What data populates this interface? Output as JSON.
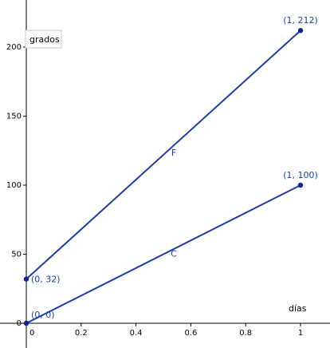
{
  "chart_data": {
    "type": "line",
    "xlabel": "días",
    "ylabel": "grados",
    "xlim": [
      -0.02,
      1.1
    ],
    "ylim": [
      -10,
      228
    ],
    "x_ticks": [
      0,
      0.2,
      0.4,
      0.6,
      0.8,
      1
    ],
    "x_tick_labels": [
      "0",
      "0.2",
      "0.4",
      "0.6",
      "0.8",
      "1"
    ],
    "y_ticks": [
      0,
      50,
      100,
      150,
      200
    ],
    "y_tick_labels": [
      "0",
      "50",
      "100",
      "150",
      "200"
    ],
    "grid": false,
    "series": [
      {
        "name": "F",
        "x": [
          0,
          1
        ],
        "y": [
          32,
          212
        ],
        "point_labels": [
          "(0, 32)",
          "(1, 212)"
        ]
      },
      {
        "name": "C",
        "x": [
          0,
          1
        ],
        "y": [
          0,
          100
        ],
        "point_labels": [
          "(0, 0)",
          "(1, 100)"
        ]
      }
    ],
    "colors": {
      "series": "#1c3da8",
      "points": "#10239a",
      "labels": "#1c3da8",
      "axes": "#000000"
    }
  }
}
